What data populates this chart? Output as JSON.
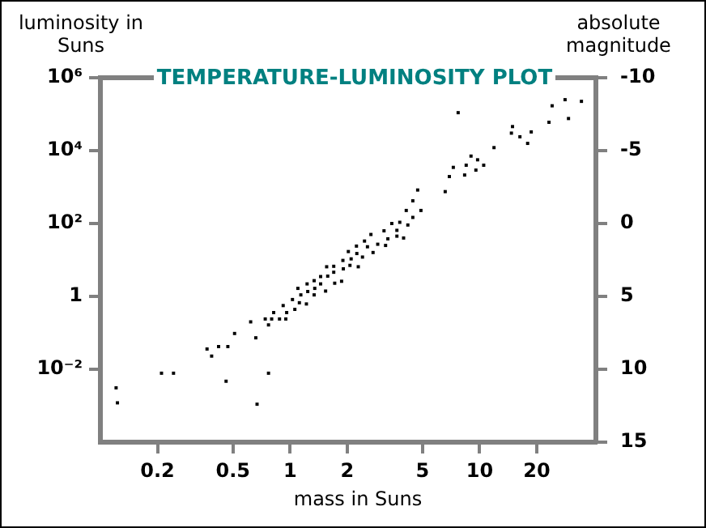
{
  "chart_data": {
    "type": "scatter",
    "title": "TEMPERATURE-LUMINOSITY PLOT",
    "xlabel": "mass in Suns",
    "ylabel": "luminosity in Suns",
    "y2label": "absolute magnitude",
    "x": [
      0.121,
      0.123,
      0.21,
      0.243,
      0.365,
      0.386,
      0.42,
      0.47,
      0.46,
      0.51,
      0.62,
      0.66,
      0.67,
      0.77,
      0.74,
      0.77,
      0.8,
      0.82,
      0.88,
      0.92,
      0.95,
      0.96,
      1.03,
      1.06,
      1.1,
      1.12,
      1.14,
      1.22,
      1.23,
      1.24,
      1.34,
      1.35,
      1.34,
      1.45,
      1.45,
      1.54,
      1.56,
      1.58,
      1.7,
      1.7,
      1.72,
      1.87,
      1.9,
      1.91,
      2.03,
      2.07,
      2.1,
      2.24,
      2.25,
      2.29,
      2.41,
      2.47,
      2.56,
      2.67,
      2.74,
      2.9,
      3.13,
      3.19,
      3.28,
      3.44,
      3.66,
      3.66,
      3.79,
      3.97,
      4.1,
      4.18,
      4.44,
      4.44,
      4.71,
      4.9,
      6.58,
      6.92,
      7.26,
      8.33,
      8.49,
      9.0,
      9.55,
      9.75,
      10.5,
      11.9,
      7.7,
      14.9,
      14.7,
      16.3,
      17.9,
      18.7,
      23.2,
      24.1,
      28.2,
      29.4,
      34.4
    ],
    "values": [
      0.0031,
      0.0012,
      0.0078,
      0.0078,
      0.036,
      0.023,
      0.042,
      0.042,
      0.0047,
      0.096,
      0.2,
      0.073,
      0.0011,
      0.0078,
      0.24,
      0.165,
      0.24,
      0.36,
      0.24,
      0.56,
      0.24,
      0.36,
      0.82,
      0.44,
      1.66,
      0.67,
      1.1,
      0.62,
      2.2,
      1.36,
      2.7,
      1.66,
      1.1,
      3.5,
      2.2,
      1.4,
      6.5,
      3.6,
      6.7,
      4.6,
      2.3,
      2.6,
      9.7,
      5.7,
      17,
      7.1,
      10.7,
      24,
      15,
      6.5,
      12,
      33,
      23,
      50,
      16,
      27,
      63,
      25,
      38,
      100,
      65,
      45,
      108,
      40,
      228,
      91,
      147,
      420,
      830,
      228,
      750,
      1940,
      3470,
      2140,
      3980,
      7080,
      2920,
      5600,
      3980,
      12100,
      110000,
      45700,
      30200,
      24000,
      15800,
      32600,
      60000,
      170000,
      250000,
      76000,
      225000
    ],
    "color": "#000000",
    "marker": "square",
    "log": "xy",
    "xlim": [
      0.1,
      41
    ],
    "xticks": [
      0.2,
      0.5,
      1,
      2,
      5,
      10,
      20
    ],
    "ylim": [
      0.0001,
      1000000
    ],
    "yticks": [
      {
        "value": 0.01,
        "label": "10⁻²"
      },
      1,
      {
        "value": 100,
        "label": "10²"
      },
      {
        "value": 10000,
        "label": "10⁴"
      },
      {
        "value": 1000000,
        "label": "10⁶"
      }
    ],
    "y2lim": [
      15,
      -10
    ],
    "y2ticks": [
      -10,
      -5,
      0,
      5,
      10,
      15
    ]
  }
}
